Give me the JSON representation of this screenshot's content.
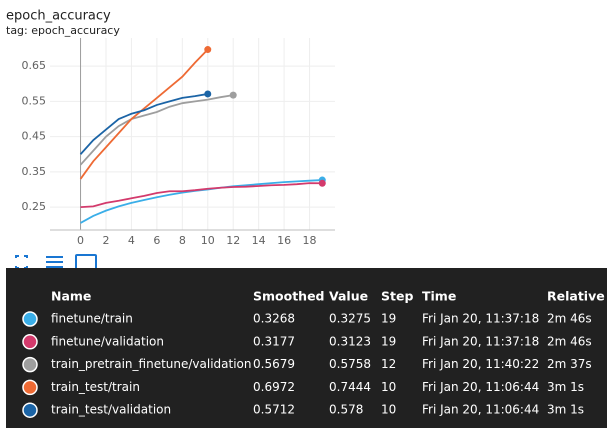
{
  "chart_data": {
    "type": "line",
    "title": "epoch_accuracy",
    "subtitle": "tag: epoch_accuracy",
    "x": [
      0,
      1,
      2,
      3,
      4,
      5,
      6,
      7,
      8,
      9,
      10,
      11,
      12,
      13,
      14,
      15,
      16,
      17,
      18,
      19
    ],
    "xlim": [
      -2.4,
      20
    ],
    "xticks": [
      0,
      2,
      4,
      6,
      8,
      10,
      12,
      14,
      16,
      18
    ],
    "ylim": [
      0.185,
      0.73
    ],
    "yticks": [
      0.25,
      0.35,
      0.45,
      0.55,
      0.65
    ],
    "grid": true,
    "series": [
      {
        "name": "finetune/train",
        "color": "#3aaee8",
        "values": [
          0.205,
          0.225,
          0.24,
          0.252,
          0.262,
          0.27,
          0.278,
          0.285,
          0.291,
          0.296,
          0.3,
          0.305,
          0.309,
          0.312,
          0.315,
          0.318,
          0.321,
          0.323,
          0.325,
          0.3268
        ]
      },
      {
        "name": "finetune/validation",
        "color": "#d33a6c",
        "values": [
          0.25,
          0.252,
          0.262,
          0.268,
          0.275,
          0.282,
          0.29,
          0.295,
          0.295,
          0.298,
          0.302,
          0.305,
          0.307,
          0.308,
          0.31,
          0.312,
          0.313,
          0.315,
          0.318,
          0.3177
        ]
      },
      {
        "name": "train_pretrain_finetune/validation",
        "color": "#9e9e9e",
        "values": [
          0.37,
          0.41,
          0.45,
          0.48,
          0.5,
          0.51,
          0.52,
          0.535,
          0.545,
          0.55,
          0.555,
          0.562,
          0.5679,
          null,
          null,
          null,
          null,
          null,
          null,
          null
        ]
      },
      {
        "name": "train_test/train",
        "color": "#ee6a34",
        "values": [
          0.33,
          0.38,
          0.42,
          0.46,
          0.5,
          0.53,
          0.56,
          0.59,
          0.62,
          0.66,
          0.6972,
          null,
          null,
          null,
          null,
          null,
          null,
          null,
          null,
          null
        ]
      },
      {
        "name": "train_test/validation",
        "color": "#1b64a6",
        "values": [
          0.4,
          0.44,
          0.47,
          0.5,
          0.515,
          0.525,
          0.54,
          0.55,
          0.56,
          0.565,
          0.5712,
          null,
          null,
          null,
          null,
          null,
          null,
          null,
          null,
          null
        ]
      }
    ]
  },
  "tooltip": {
    "columns": [
      "Name",
      "Smoothed",
      "Value",
      "Step",
      "Time",
      "Relative"
    ],
    "rows": [
      [
        "finetune/train",
        "0.3268",
        "0.3275",
        "19",
        "Fri Jan 20, 11:37:18",
        "2m 46s"
      ],
      [
        "finetune/validation",
        "0.3177",
        "0.3123",
        "19",
        "Fri Jan 20, 11:37:18",
        "2m 46s"
      ],
      [
        "train_pretrain_finetune/validation",
        "0.5679",
        "0.5758",
        "12",
        "Fri Jan 20, 11:40:22",
        "2m 37s"
      ],
      [
        "train_test/train",
        "0.6972",
        "0.7444",
        "10",
        "Fri Jan 20, 11:06:44",
        "3m 1s"
      ],
      [
        "train_test/validation",
        "0.5712",
        "0.578",
        "10",
        "Fri Jan 20, 11:06:44",
        "3m 1s"
      ]
    ]
  }
}
